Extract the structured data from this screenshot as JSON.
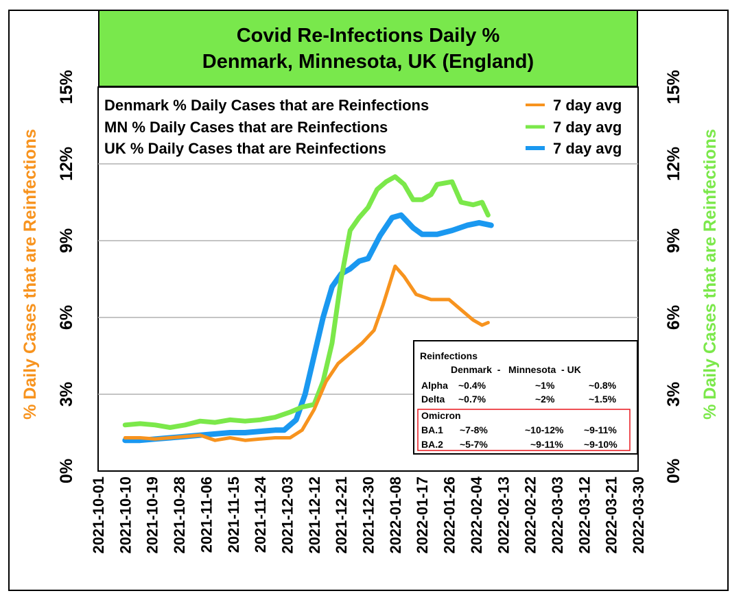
{
  "chart_data": {
    "type": "line",
    "title": "Covid Re-Infections Daily %",
    "subtitle": "Denmark, Minnesota, UK (England)",
    "ylabel_left": "% Daily Cases that are Reinfections",
    "ylabel_right": "% Daily Cases that are Reinfections",
    "ylim": [
      0,
      15
    ],
    "yticks": [
      "0%",
      "3%",
      "6%",
      "9%",
      "12%",
      "15%"
    ],
    "yticks_right": [
      "0%",
      "3%",
      "6%",
      "9%",
      "12%",
      "15%"
    ],
    "xticks": [
      "2021-10-01",
      "2021-10-10",
      "2021-10-19",
      "2021-10-28",
      "2021-11-06",
      "2021-11-15",
      "2021-11-24",
      "2021-12-03",
      "2021-12-12",
      "2021-12-21",
      "2021-12-30",
      "2022-01-08",
      "2022-01-17",
      "2022-01-26",
      "2022-02-04",
      "2022-02-13",
      "2022-02-22",
      "2022-03-03",
      "2022-03-12",
      "2022-03-21",
      "2022-03-30"
    ],
    "xlim": [
      "2021-10-01",
      "2022-03-30"
    ],
    "grid": "horizontal",
    "legend_position": "top",
    "legend": [
      {
        "label": "Denmark % Daily Cases that are Reinfections",
        "avg_label": "7 day avg",
        "color": "#f7931e"
      },
      {
        "label": "MN % Daily Cases that are Reinfections",
        "avg_label": "7 day avg",
        "color": "#7be84a"
      },
      {
        "label": "UK % Daily Cases that are Reinfections",
        "avg_label": "7 day avg",
        "color": "#1a98f0"
      }
    ],
    "series": [
      {
        "name": "Denmark % Daily Cases that are Reinfections",
        "color": "#f7931e",
        "x": [
          "2021-10-10",
          "2021-10-15",
          "2021-10-20",
          "2021-10-25",
          "2021-10-30",
          "2021-11-04",
          "2021-11-09",
          "2021-11-14",
          "2021-11-19",
          "2021-11-24",
          "2021-11-29",
          "2021-12-04",
          "2021-12-08",
          "2021-12-12",
          "2021-12-16",
          "2021-12-20",
          "2021-12-24",
          "2021-12-28",
          "2022-01-01",
          "2022-01-04",
          "2022-01-08",
          "2022-01-11",
          "2022-01-15",
          "2022-01-20",
          "2022-01-26",
          "2022-01-30",
          "2022-02-03",
          "2022-02-06",
          "2022-02-08"
        ],
        "values": [
          1.3,
          1.3,
          1.25,
          1.3,
          1.35,
          1.4,
          1.2,
          1.3,
          1.2,
          1.25,
          1.3,
          1.3,
          1.6,
          2.4,
          3.5,
          4.2,
          4.6,
          5.0,
          5.5,
          6.5,
          8.0,
          7.6,
          6.9,
          6.7,
          6.7,
          6.3,
          5.9,
          5.7,
          5.8
        ]
      },
      {
        "name": "MN % Daily Cases that are Reinfections",
        "color": "#7be84a",
        "x": [
          "2021-10-10",
          "2021-10-15",
          "2021-10-20",
          "2021-10-25",
          "2021-10-30",
          "2021-11-04",
          "2021-11-09",
          "2021-11-14",
          "2021-11-19",
          "2021-11-24",
          "2021-11-29",
          "2021-12-04",
          "2021-12-08",
          "2021-12-12",
          "2021-12-15",
          "2021-12-18",
          "2021-12-21",
          "2021-12-24",
          "2021-12-27",
          "2021-12-30",
          "2022-01-02",
          "2022-01-05",
          "2022-01-08",
          "2022-01-11",
          "2022-01-14",
          "2022-01-17",
          "2022-01-20",
          "2022-01-22",
          "2022-01-27",
          "2022-01-30",
          "2022-02-03",
          "2022-02-06",
          "2022-02-08"
        ],
        "values": [
          1.8,
          1.85,
          1.8,
          1.7,
          1.8,
          1.95,
          1.9,
          2.0,
          1.95,
          2.0,
          2.1,
          2.3,
          2.5,
          2.6,
          3.5,
          5.0,
          7.5,
          9.4,
          9.9,
          10.3,
          11.0,
          11.3,
          11.5,
          11.2,
          10.6,
          10.6,
          10.8,
          11.2,
          11.3,
          10.5,
          10.4,
          10.5,
          10.0
        ]
      },
      {
        "name": "UK % Daily Cases that are Reinfections",
        "color": "#1a98f0",
        "x": [
          "2021-10-10",
          "2021-10-15",
          "2021-10-20",
          "2021-10-25",
          "2021-10-30",
          "2021-11-04",
          "2021-11-09",
          "2021-11-14",
          "2021-11-19",
          "2021-11-24",
          "2021-11-29",
          "2021-12-02",
          "2021-12-06",
          "2021-12-09",
          "2021-12-12",
          "2021-12-15",
          "2021-12-18",
          "2021-12-21",
          "2021-12-24",
          "2021-12-27",
          "2021-12-30",
          "2022-01-03",
          "2022-01-07",
          "2022-01-10",
          "2022-01-14",
          "2022-01-17",
          "2022-01-22",
          "2022-01-27",
          "2022-02-01",
          "2022-02-05",
          "2022-02-09"
        ],
        "values": [
          1.2,
          1.2,
          1.25,
          1.3,
          1.35,
          1.4,
          1.45,
          1.5,
          1.5,
          1.55,
          1.6,
          1.6,
          2.0,
          3.0,
          4.5,
          6.0,
          7.2,
          7.7,
          7.9,
          8.2,
          8.3,
          9.2,
          9.9,
          10.0,
          9.5,
          9.25,
          9.25,
          9.4,
          9.6,
          9.7,
          9.6
        ]
      }
    ],
    "table": {
      "title": "Reinfections",
      "header": "Denmark  -   Minnesota  - UK",
      "rows": [
        {
          "variant": "Alpha",
          "denmark": "~0.4%",
          "minnesota": "~1%",
          "uk": "~0.8%"
        },
        {
          "variant": "Delta",
          "denmark": "~0.7%",
          "minnesota": "~2%",
          "uk": "~1.5%"
        }
      ],
      "omicron_title": "Omicron",
      "omicron_rows": [
        {
          "variant": "BA.1",
          "denmark": "~7-8%",
          "minnesota": "~10-12%",
          "uk": "~9-11%"
        },
        {
          "variant": "BA.2",
          "denmark": "~5-7%",
          "minnesota": "~9-11%",
          "uk": "~9-10%"
        }
      ]
    }
  },
  "colors": {
    "title_bg": "#79e84c",
    "left_axis_label": "#f7931e",
    "right_axis_label": "#7be84a",
    "grid": "#b0b0b0",
    "omicron_box": "#e8151b"
  }
}
